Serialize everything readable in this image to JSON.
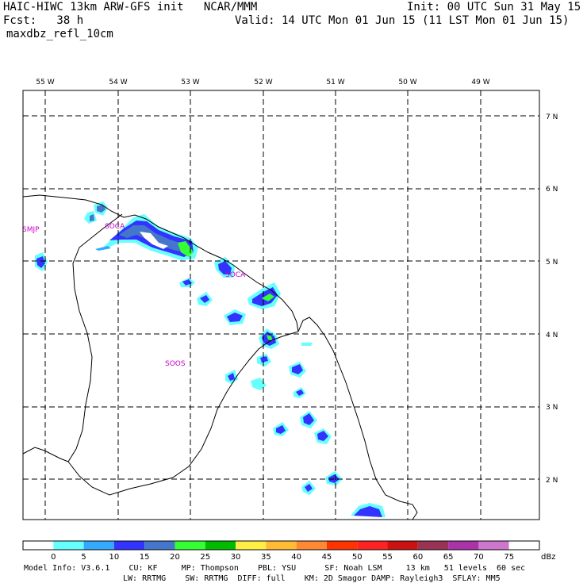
{
  "header": {
    "model_line": "HAIC-HIWC 13km ARW-GFS init   NCAR/MMM",
    "init_line": "Init: 00 UTC Sun 31 May 15",
    "fcst_line": "Fcst:   38 h",
    "valid_line": "Valid: 14 UTC Mon 01 Jun 15 (11 LST Mon 01 Jun 15)",
    "field_name": "maxdbz_refl_10cm"
  },
  "map": {
    "lon_labels": [
      "55 W",
      "54 W",
      "53 W",
      "52 W",
      "51 W",
      "50 W",
      "49 W"
    ],
    "lat_labels": [
      "7 N",
      "6 N",
      "5 N",
      "4 N",
      "3 N",
      "2 N"
    ],
    "stations": [
      "SMJP",
      "SOCA",
      "SOCA",
      "SOOS"
    ]
  },
  "colorbar": {
    "unit": "dBz",
    "tick_labels": [
      "0",
      "5",
      "10",
      "15",
      "20",
      "25",
      "30",
      "35",
      "40",
      "45",
      "50",
      "55",
      "60",
      "65",
      "70",
      "75"
    ],
    "colors": [
      "#ffffff",
      "#66ffff",
      "#33aaff",
      "#3333ff",
      "#4477cc",
      "#33ff33",
      "#00bb00",
      "#ffee44",
      "#ffbb33",
      "#ff8833",
      "#ff3300",
      "#ff2222",
      "#cc1111",
      "#993355",
      "#aa33aa",
      "#cc77cc"
    ]
  },
  "model_info": {
    "line1": "Model Info: V3.6.1    CU: KF     MP: Thompson    PBL: YSU      SF: Noah LSM     13 km   51 levels  60 sec",
    "line2": "LW: RRTMG    SW: RRTMG  DIFF: full    KM: 2D Smagor DAMP: Rayleigh3  SFLAY: MM5"
  }
}
